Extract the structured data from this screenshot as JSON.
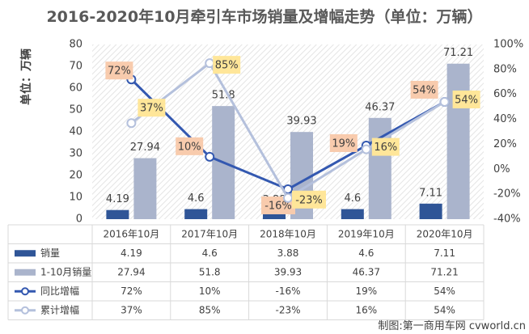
{
  "title": "2016-2020年10月牵引车市场销量及增幅走势（单位：万辆）",
  "ylabel": "单位：万辆",
  "footer": "制图:第一商用车网 cvworld.cn",
  "chart_data": {
    "type": "bar",
    "categories": [
      "2016年10月",
      "2017年10月",
      "2018年10月",
      "2019年10月",
      "2020年10月"
    ],
    "ylim": [
      0,
      80
    ],
    "yticks": [
      0,
      10,
      20,
      30,
      40,
      50,
      60,
      70,
      80
    ],
    "y2lim": [
      -40,
      100
    ],
    "y2ticks": [
      "-40%",
      "-20%",
      "0%",
      "20%",
      "40%",
      "60%",
      "80%",
      "100%"
    ],
    "y2tick_values": [
      -40,
      -20,
      0,
      20,
      40,
      60,
      80,
      100
    ],
    "grid": false,
    "series": [
      {
        "name": "销量",
        "type": "bar",
        "axis": "left",
        "color": "#2f5597",
        "values": [
          4.19,
          4.6,
          3.88,
          4.6,
          7.11
        ],
        "labels": [
          "4.19",
          "4.6",
          "3.88",
          "4.6",
          "7.11"
        ]
      },
      {
        "name": "1-10月销量",
        "type": "bar",
        "axis": "left",
        "color": "#aab4cc",
        "values": [
          27.94,
          51.8,
          39.93,
          46.37,
          71.21
        ],
        "labels": [
          "27.94",
          "51.8",
          "39.93",
          "46.37",
          "71.21"
        ]
      },
      {
        "name": "同比增幅",
        "type": "line",
        "axis": "right",
        "color": "#3358b0",
        "values": [
          72,
          10,
          -16,
          19,
          54
        ],
        "labels": [
          "72%",
          "10%",
          "-16%",
          "19%",
          "54%"
        ],
        "label_bg": "#f8cbad"
      },
      {
        "name": "累计增幅",
        "type": "line",
        "axis": "right",
        "color": "#b4c0dc",
        "values": [
          37,
          85,
          -23,
          16,
          54
        ],
        "labels": [
          "37%",
          "85%",
          "-23%",
          "16%",
          "54%"
        ],
        "label_bg": "#ffe699"
      }
    ]
  }
}
